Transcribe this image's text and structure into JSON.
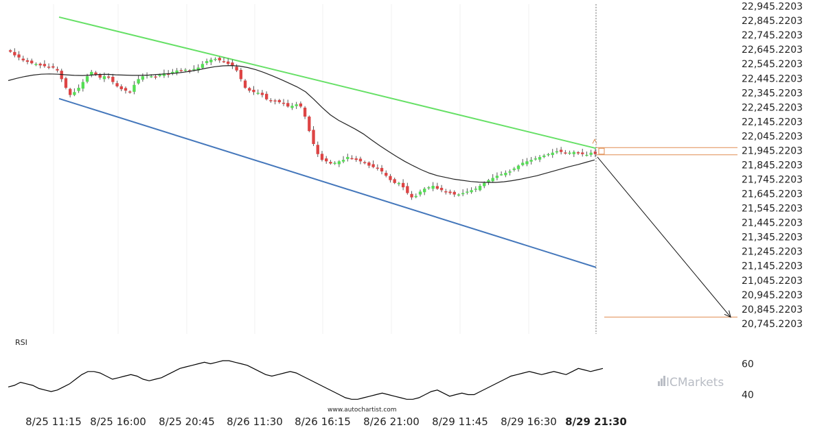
{
  "chart_data": [
    {
      "type": "candlestick",
      "price_axis": {
        "labels": [
          "22,945.2203",
          "22,845.2203",
          "22,745.2203",
          "22,645.2203",
          "22,545.2203",
          "22,445.2203",
          "22,345.2203",
          "22,245.2203",
          "22,145.2203",
          "22,045.2203",
          "21,945.2203",
          "21,845.2203",
          "21,745.2203",
          "21,645.2203",
          "21,545.2203",
          "21,445.2203",
          "21,345.2203",
          "21,245.2203",
          "21,145.2203",
          "21,045.2203",
          "20,945.2203",
          "20,845.2203",
          "20,745.2203"
        ],
        "ylim": [
          20716,
          22960
        ]
      },
      "time_axis": {
        "labels": [
          "8/25 11:15",
          "8/25 16:00",
          "8/25 20:45",
          "8/26 11:30",
          "8/26 16:15",
          "8/26 21:00",
          "8/29 11:45",
          "8/29 16:30",
          "8/29 21:30"
        ],
        "highlight_last": true
      },
      "price_series": [
        22630,
        22605,
        22590,
        22570,
        22560,
        22550,
        22545,
        22535,
        22530,
        22525,
        22520,
        22500,
        22440,
        22380,
        22330,
        22350,
        22380,
        22420,
        22460,
        22490,
        22470,
        22450,
        22460,
        22450,
        22420,
        22390,
        22370,
        22360,
        22350,
        22400,
        22440,
        22460,
        22470,
        22460,
        22455,
        22470,
        22480,
        22470,
        22490,
        22500,
        22495,
        22505,
        22500,
        22510,
        22520,
        22545,
        22565,
        22575,
        22580,
        22570,
        22560,
        22545,
        22530,
        22500,
        22440,
        22380,
        22360,
        22350,
        22345,
        22330,
        22300,
        22290,
        22285,
        22280,
        22270,
        22250,
        22255,
        22265,
        22250,
        22180,
        22080,
        21990,
        21920,
        21880,
        21870,
        21855,
        21860,
        21870,
        21880,
        21900,
        21890,
        21880,
        21870,
        21860,
        21840,
        21830,
        21820,
        21800,
        21770,
        21740,
        21720,
        21720,
        21690,
        21650,
        21620,
        21630,
        21660,
        21680,
        21690,
        21700,
        21680,
        21670,
        21660,
        21650,
        21640,
        21640,
        21650,
        21660,
        21670,
        21680,
        21700,
        21720,
        21740,
        21755,
        21770,
        21780,
        21790,
        21800,
        21820,
        21840,
        21860,
        21870,
        21880,
        21890,
        21900,
        21910,
        21920,
        21930,
        21940,
        21935,
        21925,
        21930,
        21935,
        21925,
        21920,
        21915,
        21930,
        21920
      ],
      "moving_average_series": [
        22430,
        22445,
        22458,
        22468,
        22474,
        22476,
        22474,
        22470,
        22466,
        22465,
        22468,
        22472,
        22473,
        22470,
        22468,
        22466,
        22466,
        22468,
        22472,
        22476,
        22480,
        22486,
        22494,
        22504,
        22516,
        22526,
        22532,
        22534,
        22530,
        22520,
        22505,
        22485,
        22462,
        22438,
        22412,
        22385,
        22352,
        22300,
        22243,
        22192,
        22154,
        22124,
        22094,
        22060,
        22018,
        21978,
        21940,
        21904,
        21870,
        21840,
        21812,
        21788,
        21770,
        21758,
        21746,
        21738,
        21730,
        21726,
        21724,
        21724,
        21728,
        21736,
        21746,
        21758,
        21770,
        21786,
        21802,
        21818,
        21834,
        21848,
        21864,
        21880
      ],
      "upper_channel": [
        [
          0,
          22870
        ],
        [
          1,
          21960
        ]
      ],
      "lower_channel": [
        [
          0,
          22305
        ],
        [
          1,
          21135
        ]
      ],
      "projection": {
        "from": 21900,
        "to": 20790
      },
      "levels": [
        21965,
        21915,
        20790
      ],
      "rsi_panel": {
        "title": "RSI",
        "tick_labels": [
          "60",
          "40"
        ],
        "ylim": [
          30,
          70
        ],
        "values": [
          45,
          46,
          48,
          47,
          46,
          44,
          43,
          42,
          43,
          45,
          47,
          50,
          53,
          55,
          55,
          54,
          52,
          50,
          51,
          52,
          53,
          52,
          50,
          49,
          50,
          51,
          53,
          55,
          57,
          58,
          59,
          60,
          61,
          60,
          61,
          62,
          62,
          61,
          60,
          59,
          57,
          55,
          53,
          52,
          53,
          54,
          55,
          54,
          52,
          50,
          48,
          46,
          44,
          42,
          40,
          38,
          37,
          37,
          38,
          39,
          40,
          41,
          40,
          39,
          38,
          37,
          37,
          38,
          40,
          42,
          43,
          41,
          39,
          40,
          41,
          40,
          40,
          42,
          44,
          46,
          48,
          50,
          52,
          53,
          54,
          55,
          54,
          53,
          54,
          55,
          54,
          53,
          55,
          57,
          56,
          55,
          56,
          57
        ]
      }
    }
  ],
  "watermark": "www.autochartist.com",
  "brand": {
    "icon": "bar-chart-icon",
    "name": "ICMarkets",
    "color": "#b8bcc4"
  },
  "colors": {
    "bull": "#55dd55",
    "bear": "#dd4444",
    "upper_channel": "#66e066",
    "lower_channel": "#4477bb",
    "level": "#e08c50",
    "moving_average": "#222222"
  }
}
